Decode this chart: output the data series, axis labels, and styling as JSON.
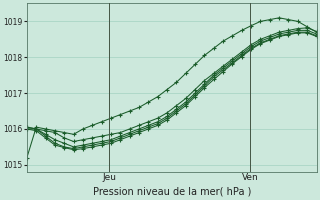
{
  "title": "Pression niveau de la mer( hPa )",
  "background_color": "#cce8dc",
  "grid_color": "#99ccbb",
  "line_color": "#1a5c2a",
  "ylim": [
    1014.8,
    1019.5
  ],
  "yticks": [
    1015,
    1016,
    1017,
    1018,
    1019
  ],
  "x_day_labels": [
    [
      "Jeu",
      0.285
    ],
    [
      "Ven",
      0.77
    ]
  ],
  "series": [
    [
      1015.2,
      1016.05,
      1016.0,
      1015.95,
      1015.9,
      1015.85,
      1016.0,
      1016.1,
      1016.2,
      1016.3,
      1016.4,
      1016.5,
      1016.6,
      1016.75,
      1016.9,
      1017.1,
      1017.3,
      1017.55,
      1017.8,
      1018.05,
      1018.25,
      1018.45,
      1018.6,
      1018.75,
      1018.88,
      1019.0,
      1019.05,
      1019.1,
      1019.05,
      1019.0,
      1018.85,
      1018.7
    ],
    [
      1016.05,
      1016.0,
      1015.85,
      1015.7,
      1015.6,
      1015.5,
      1015.55,
      1015.6,
      1015.65,
      1015.7,
      1015.8,
      1015.9,
      1016.0,
      1016.1,
      1016.2,
      1016.35,
      1016.55,
      1016.75,
      1017.0,
      1017.25,
      1017.5,
      1017.7,
      1017.9,
      1018.1,
      1018.3,
      1018.45,
      1018.55,
      1018.65,
      1018.7,
      1018.75,
      1018.75,
      1018.65
    ],
    [
      1016.05,
      1016.0,
      1015.8,
      1015.6,
      1015.5,
      1015.45,
      1015.5,
      1015.55,
      1015.6,
      1015.65,
      1015.75,
      1015.85,
      1015.95,
      1016.05,
      1016.15,
      1016.3,
      1016.5,
      1016.7,
      1016.95,
      1017.2,
      1017.45,
      1017.65,
      1017.85,
      1018.05,
      1018.25,
      1018.4,
      1018.5,
      1018.6,
      1018.65,
      1018.7,
      1018.7,
      1018.6
    ],
    [
      1016.0,
      1016.0,
      1015.95,
      1015.9,
      1015.75,
      1015.65,
      1015.7,
      1015.75,
      1015.8,
      1015.85,
      1015.9,
      1016.0,
      1016.1,
      1016.2,
      1016.3,
      1016.45,
      1016.65,
      1016.85,
      1017.1,
      1017.35,
      1017.55,
      1017.75,
      1017.95,
      1018.15,
      1018.35,
      1018.5,
      1018.6,
      1018.7,
      1018.75,
      1018.8,
      1018.82,
      1018.72
    ],
    [
      1016.0,
      1015.95,
      1015.75,
      1015.55,
      1015.48,
      1015.42,
      1015.45,
      1015.5,
      1015.55,
      1015.6,
      1015.7,
      1015.8,
      1015.9,
      1016.0,
      1016.1,
      1016.25,
      1016.45,
      1016.65,
      1016.9,
      1017.15,
      1017.38,
      1017.6,
      1017.82,
      1018.02,
      1018.22,
      1018.38,
      1018.48,
      1018.58,
      1018.63,
      1018.68,
      1018.68,
      1018.58
    ]
  ]
}
